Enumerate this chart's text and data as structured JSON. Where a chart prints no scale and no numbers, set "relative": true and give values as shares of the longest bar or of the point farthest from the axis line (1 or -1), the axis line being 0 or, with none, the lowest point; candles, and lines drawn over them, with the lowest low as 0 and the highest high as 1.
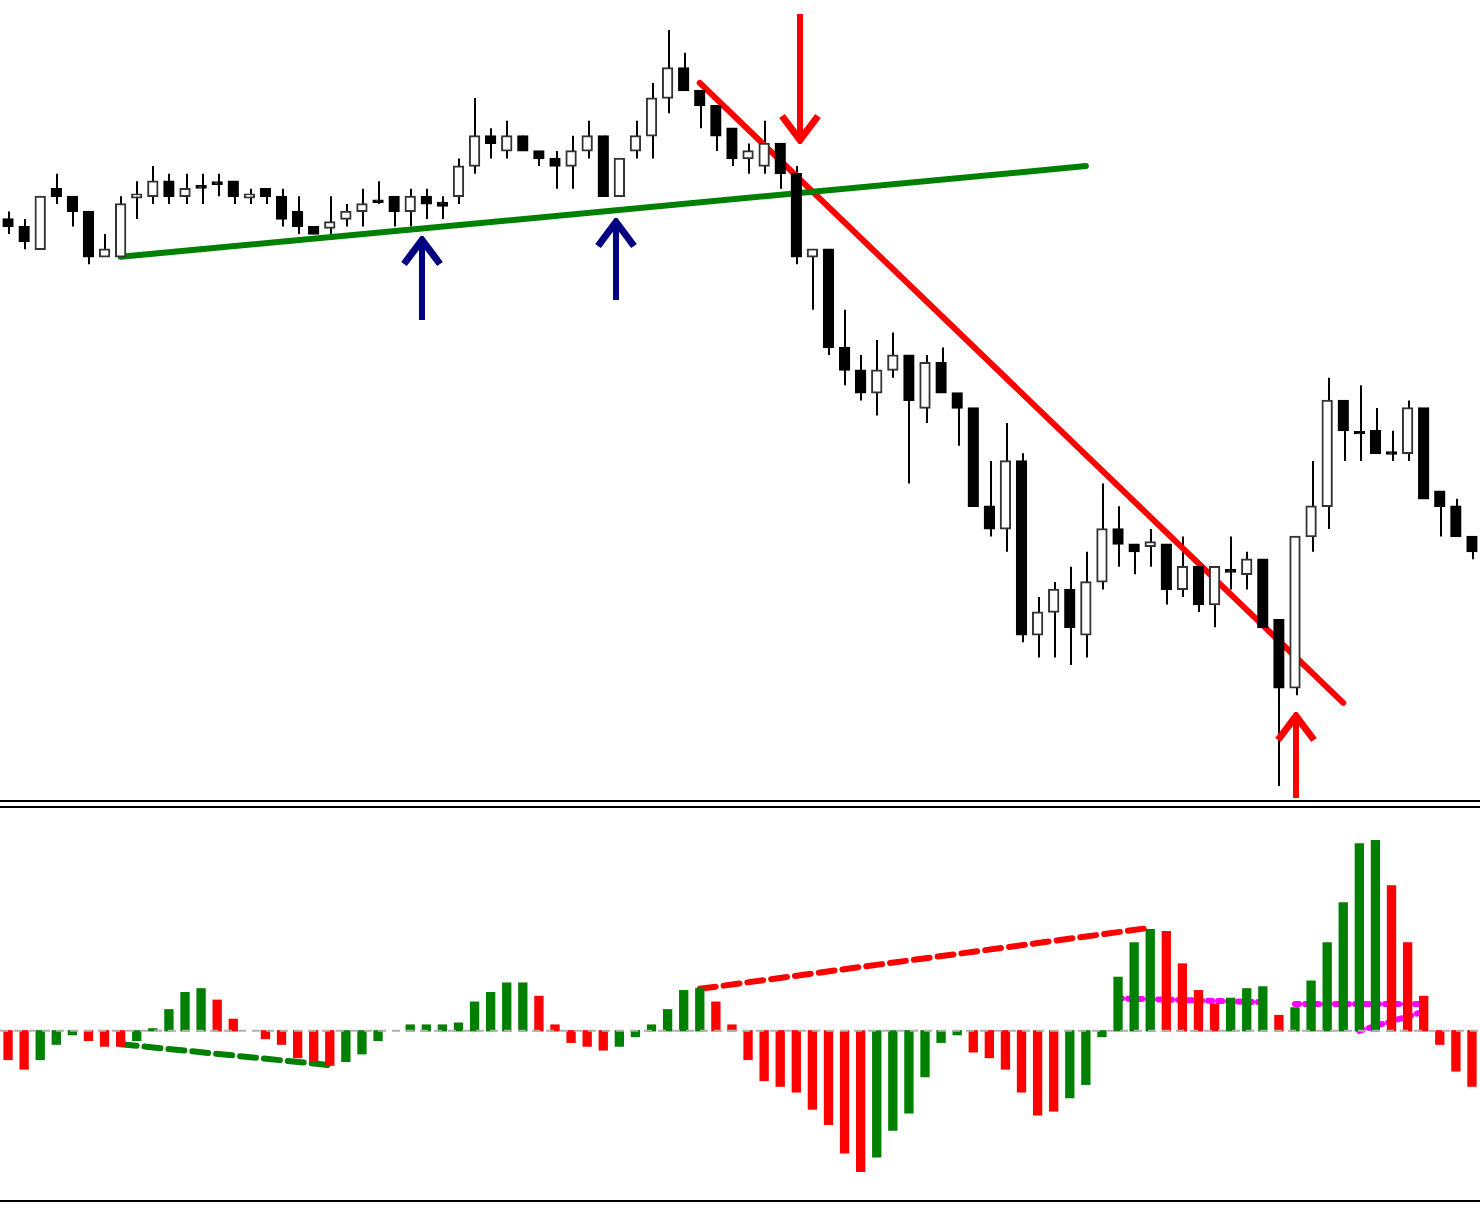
{
  "chart_data": [
    {
      "type": "candlestick",
      "relative": true,
      "categories": [
        null,
        null,
        null,
        null,
        null,
        null,
        null,
        null,
        null,
        null,
        null,
        null,
        null,
        null,
        null,
        null,
        null,
        null,
        null,
        null,
        null,
        null,
        null,
        null,
        null,
        null,
        null,
        null,
        null,
        null,
        null,
        null,
        null,
        null,
        null,
        null,
        null,
        null,
        null,
        null,
        null,
        null,
        null,
        null,
        null,
        null,
        null,
        null,
        null,
        null,
        null,
        null,
        null,
        null,
        null,
        null,
        null,
        null,
        null,
        null,
        null,
        null,
        null,
        null,
        null,
        null,
        null,
        null,
        null,
        null,
        null,
        null,
        null,
        null,
        null,
        null,
        null,
        null,
        null,
        null,
        null,
        null,
        null,
        null,
        null,
        null,
        null,
        null,
        null,
        null,
        null,
        null
      ],
      "ohlc": [
        [
          0.75,
          0.76,
          0.73,
          0.74
        ],
        [
          0.74,
          0.75,
          0.71,
          0.72
        ],
        [
          0.71,
          0.78,
          0.71,
          0.78
        ],
        [
          0.79,
          0.81,
          0.77,
          0.78
        ],
        [
          0.78,
          0.78,
          0.74,
          0.76
        ],
        [
          0.76,
          0.76,
          0.69,
          0.7
        ],
        [
          0.7,
          0.73,
          0.7,
          0.71
        ],
        [
          0.7,
          0.78,
          0.7,
          0.77
        ],
        [
          0.778,
          0.8,
          0.75,
          0.783
        ],
        [
          0.78,
          0.82,
          0.77,
          0.8
        ],
        [
          0.8,
          0.81,
          0.77,
          0.78
        ],
        [
          0.78,
          0.81,
          0.77,
          0.79
        ],
        [
          0.794,
          0.81,
          0.77,
          0.791
        ],
        [
          0.799,
          0.81,
          0.78,
          0.796
        ],
        [
          0.8,
          0.8,
          0.77,
          0.78
        ],
        [
          0.778,
          0.79,
          0.77,
          0.783
        ],
        [
          0.79,
          0.79,
          0.77,
          0.78
        ],
        [
          0.78,
          0.79,
          0.74,
          0.75
        ],
        [
          0.76,
          0.78,
          0.73,
          0.74
        ],
        [
          0.74,
          0.74,
          0.73,
          0.73
        ],
        [
          0.738,
          0.78,
          0.73,
          0.746
        ],
        [
          0.75,
          0.77,
          0.74,
          0.76
        ],
        [
          0.76,
          0.79,
          0.74,
          0.77
        ],
        [
          0.775,
          0.8,
          0.77,
          0.772
        ],
        [
          0.78,
          0.78,
          0.74,
          0.76
        ],
        [
          0.76,
          0.79,
          0.74,
          0.78
        ],
        [
          0.78,
          0.79,
          0.75,
          0.77
        ],
        [
          0.772,
          0.78,
          0.75,
          0.767
        ],
        [
          0.78,
          0.83,
          0.77,
          0.82
        ],
        [
          0.82,
          0.91,
          0.81,
          0.86
        ],
        [
          0.86,
          0.87,
          0.83,
          0.85
        ],
        [
          0.84,
          0.88,
          0.83,
          0.86
        ],
        [
          0.86,
          0.86,
          0.84,
          0.84
        ],
        [
          0.84,
          0.84,
          0.82,
          0.83
        ],
        [
          0.83,
          0.84,
          0.79,
          0.82
        ],
        [
          0.82,
          0.86,
          0.79,
          0.84
        ],
        [
          0.84,
          0.88,
          0.83,
          0.86
        ],
        [
          0.86,
          0.86,
          0.78,
          0.78
        ],
        [
          0.78,
          0.83,
          0.78,
          0.83
        ],
        [
          0.84,
          0.88,
          0.83,
          0.86
        ],
        [
          0.86,
          0.93,
          0.83,
          0.91
        ],
        [
          0.91,
          1,
          0.89,
          0.95
        ],
        [
          0.95,
          0.97,
          0.92,
          0.92
        ],
        [
          0.92,
          0.92,
          0.87,
          0.9
        ],
        [
          0.9,
          0.9,
          0.84,
          0.86
        ],
        [
          0.87,
          0.87,
          0.82,
          0.83
        ],
        [
          0.83,
          0.85,
          0.81,
          0.84
        ],
        [
          0.82,
          0.88,
          0.81,
          0.85
        ],
        [
          0.85,
          0.85,
          0.79,
          0.81
        ],
        [
          0.81,
          0.82,
          0.69,
          0.7
        ],
        [
          0.7,
          0.71,
          0.63,
          0.71
        ],
        [
          0.71,
          0.71,
          0.57,
          0.58
        ],
        [
          0.58,
          0.63,
          0.53,
          0.55
        ],
        [
          0.55,
          0.57,
          0.51,
          0.52
        ],
        [
          0.52,
          0.59,
          0.49,
          0.55
        ],
        [
          0.55,
          0.6,
          0.54,
          0.57
        ],
        [
          0.57,
          0.57,
          0.4,
          0.51
        ],
        [
          0.5,
          0.57,
          0.48,
          0.56
        ],
        [
          0.56,
          0.58,
          0.52,
          0.52
        ],
        [
          0.52,
          0.52,
          0.45,
          0.5
        ],
        [
          0.5,
          0.5,
          0.37,
          0.37
        ],
        [
          0.37,
          0.43,
          0.33,
          0.34
        ],
        [
          0.34,
          0.48,
          0.31,
          0.43
        ],
        [
          0.43,
          0.44,
          0.19,
          0.2
        ],
        [
          0.2,
          0.25,
          0.17,
          0.23
        ],
        [
          0.23,
          0.27,
          0.17,
          0.26
        ],
        [
          0.26,
          0.29,
          0.16,
          0.21
        ],
        [
          0.2,
          0.31,
          0.17,
          0.27
        ],
        [
          0.27,
          0.4,
          0.26,
          0.34
        ],
        [
          0.34,
          0.37,
          0.29,
          0.32
        ],
        [
          0.32,
          0.32,
          0.28,
          0.31
        ],
        [
          0.317,
          0.34,
          0.29,
          0.323
        ],
        [
          0.32,
          0.32,
          0.24,
          0.26
        ],
        [
          0.26,
          0.33,
          0.25,
          0.29
        ],
        [
          0.29,
          0.29,
          0.23,
          0.24
        ],
        [
          0.24,
          0.29,
          0.21,
          0.29
        ],
        [
          0.286,
          0.33,
          0.26,
          0.283
        ],
        [
          0.28,
          0.31,
          0.26,
          0.3
        ],
        [
          0.3,
          0.3,
          0.21,
          0.21
        ],
        [
          0.22,
          0.22,
          0,
          0.13
        ],
        [
          0.13,
          0.33,
          0.12,
          0.33
        ],
        [
          0.33,
          0.43,
          0.31,
          0.37
        ],
        [
          0.37,
          0.54,
          0.34,
          0.51
        ],
        [
          0.51,
          0.51,
          0.43,
          0.47
        ],
        [
          0.468,
          0.53,
          0.43,
          0.466
        ],
        [
          0.47,
          0.5,
          0.44,
          0.44
        ],
        [
          0.442,
          0.47,
          0.43,
          0.439
        ],
        [
          0.44,
          0.51,
          0.43,
          0.5
        ],
        [
          0.5,
          0.5,
          0.38,
          0.38
        ],
        [
          0.39,
          0.39,
          0.33,
          0.37
        ],
        [
          0.37,
          0.38,
          0.33,
          0.33
        ],
        [
          0.33,
          0.33,
          0.3,
          0.31
        ]
      ],
      "series": [
        {
          "type": "line",
          "color": "#008000",
          "values": [
            null,
            null,
            null,
            null,
            null,
            null,
            null,
            0.7,
            null,
            null,
            null,
            null,
            null,
            null,
            null,
            null,
            null,
            null,
            null,
            null,
            null,
            null,
            null,
            null,
            null,
            null,
            null,
            null,
            null,
            null,
            null,
            null,
            null,
            null,
            null,
            null,
            null,
            null,
            null,
            null,
            null,
            null,
            null,
            null,
            null,
            null,
            null,
            null,
            null,
            null,
            null,
            null,
            null,
            null,
            null,
            null,
            null,
            null,
            null,
            null,
            null,
            null,
            null,
            null,
            null,
            null,
            null,
            0.82,
            null,
            null,
            null,
            null,
            null,
            null,
            null,
            null,
            null,
            null,
            null,
            null,
            null,
            null,
            null,
            null,
            null,
            null,
            null,
            null,
            null,
            null,
            null,
            null
          ]
        },
        {
          "type": "line",
          "color": "#ff0000",
          "values": [
            null,
            null,
            null,
            null,
            null,
            null,
            null,
            null,
            null,
            null,
            null,
            null,
            null,
            null,
            null,
            null,
            null,
            null,
            null,
            null,
            null,
            null,
            null,
            null,
            null,
            null,
            null,
            null,
            null,
            null,
            null,
            null,
            null,
            null,
            null,
            null,
            null,
            null,
            null,
            null,
            null,
            null,
            null,
            0.93,
            null,
            null,
            null,
            null,
            null,
            null,
            null,
            null,
            null,
            null,
            null,
            null,
            null,
            null,
            null,
            null,
            null,
            null,
            null,
            null,
            null,
            null,
            null,
            null,
            null,
            null,
            null,
            null,
            null,
            null,
            null,
            null,
            null,
            null,
            null,
            null,
            null,
            null,
            null,
            0.11,
            null,
            null,
            null,
            null,
            null,
            null,
            null,
            null
          ]
        }
      ]
    },
    {
      "type": "bar",
      "relative": true,
      "ref_lines": [
        {
          "axis": "y",
          "value": 0,
          "color": "#b0b0b0",
          "line_style": "dashed"
        }
      ],
      "categories": [
        null,
        null,
        null,
        null,
        null,
        null,
        null,
        null,
        null,
        null,
        null,
        null,
        null,
        null,
        null,
        null,
        null,
        null,
        null,
        null,
        null,
        null,
        null,
        null,
        null,
        null,
        null,
        null,
        null,
        null,
        null,
        null,
        null,
        null,
        null,
        null,
        null,
        null,
        null,
        null,
        null,
        null,
        null,
        null,
        null,
        null,
        null,
        null,
        null,
        null,
        null,
        null,
        null,
        null,
        null,
        null,
        null,
        null,
        null,
        null,
        null,
        null,
        null,
        null,
        null,
        null,
        null,
        null,
        null,
        null,
        null,
        null,
        null,
        null,
        null,
        null,
        null,
        null,
        null,
        null,
        null,
        null,
        null,
        null,
        null,
        null,
        null,
        null,
        null,
        null,
        null,
        null
      ],
      "series": [
        {
          "values": [
            -0.15,
            -0.2,
            -0.15,
            -0.07,
            -0.02,
            -0.05,
            -0.08,
            -0.08,
            -0.05,
            0.01,
            0.11,
            0.2,
            0.22,
            0.16,
            0.06,
            null,
            -0.04,
            -0.07,
            -0.14,
            -0.16,
            -0.18,
            -0.16,
            -0.12,
            -0.05,
            null,
            0.03,
            0.03,
            0.03,
            0.04,
            0.15,
            0.2,
            0.25,
            0.25,
            0.18,
            0.03,
            -0.06,
            -0.08,
            -0.1,
            -0.08,
            -0.03,
            0.03,
            0.11,
            0.21,
            0.22,
            0.15,
            0.03,
            -0.15,
            -0.26,
            -0.29,
            -0.32,
            -0.41,
            -0.49,
            -0.64,
            -0.74,
            -0.66,
            -0.52,
            -0.43,
            -0.24,
            -0.06,
            -0.02,
            -0.11,
            -0.14,
            -0.2,
            -0.32,
            -0.44,
            -0.42,
            -0.35,
            -0.28,
            -0.03,
            0.28,
            0.46,
            0.53,
            0.52,
            0.35,
            0.21,
            0.14,
            0.17,
            0.22,
            0.23,
            0.08,
            0.12,
            0.26,
            0.46,
            0.67,
            0.98,
            1,
            0.76,
            0.46,
            0.18,
            -0.07,
            -0.21,
            -0.29
          ],
          "colors": [
            "#ff0000",
            "#ff0000",
            "#008000",
            "#008000",
            "#008000",
            "#ff0000",
            "#ff0000",
            "#ff0000",
            "#008000",
            "#008000",
            "#008000",
            "#008000",
            "#008000",
            "#ff0000",
            "#ff0000",
            "#ff0000",
            "#ff0000",
            "#ff0000",
            "#ff0000",
            "#ff0000",
            "#ff0000",
            "#008000",
            "#008000",
            "#008000",
            "#008000",
            "#008000",
            "#008000",
            "#008000",
            "#008000",
            "#008000",
            "#008000",
            "#008000",
            "#008000",
            "#ff0000",
            "#ff0000",
            "#ff0000",
            "#ff0000",
            "#ff0000",
            "#008000",
            "#008000",
            "#008000",
            "#008000",
            "#008000",
            "#008000",
            "#ff0000",
            "#ff0000",
            "#ff0000",
            "#ff0000",
            "#ff0000",
            "#ff0000",
            "#ff0000",
            "#ff0000",
            "#ff0000",
            "#ff0000",
            "#008000",
            "#008000",
            "#008000",
            "#008000",
            "#008000",
            "#008000",
            "#ff0000",
            "#ff0000",
            "#ff0000",
            "#ff0000",
            "#ff0000",
            "#ff0000",
            "#008000",
            "#008000",
            "#008000",
            "#008000",
            "#008000",
            "#008000",
            "#ff0000",
            "#ff0000",
            "#ff0000",
            "#ff0000",
            "#008000",
            "#008000",
            "#008000",
            "#ff0000",
            "#008000",
            "#008000",
            "#008000",
            "#008000",
            "#008000",
            "#008000",
            "#ff0000",
            "#ff0000",
            "#ff0000",
            "#ff0000",
            "#ff0000",
            "#ff0000"
          ]
        },
        {
          "type": "line",
          "color": "#008000",
          "line_style": "dashed",
          "values": [
            null,
            null,
            null,
            null,
            null,
            null,
            null,
            -0.07,
            null,
            null,
            null,
            null,
            null,
            null,
            null,
            null,
            null,
            null,
            null,
            null,
            -0.18,
            null,
            null,
            null,
            null,
            null,
            null,
            null,
            null,
            null,
            null,
            null,
            null,
            null,
            null,
            null,
            null,
            null,
            null,
            null,
            null,
            null,
            null,
            null,
            null,
            null,
            null,
            null,
            null,
            null,
            null,
            null,
            null,
            null,
            null,
            null,
            null,
            null,
            null,
            null,
            null,
            null,
            null,
            null,
            null,
            null,
            null,
            null,
            null,
            null,
            null,
            null,
            null,
            null,
            null,
            null,
            null,
            null,
            null,
            null,
            null,
            null,
            null,
            null,
            null,
            null,
            null,
            null,
            null,
            null,
            null,
            null
          ]
        },
        {
          "type": "line",
          "color": "#ff0000",
          "line_style": "dashed",
          "values": [
            null,
            null,
            null,
            null,
            null,
            null,
            null,
            null,
            null,
            null,
            null,
            null,
            null,
            null,
            null,
            null,
            null,
            null,
            null,
            null,
            null,
            null,
            null,
            null,
            null,
            null,
            null,
            null,
            null,
            null,
            null,
            null,
            null,
            null,
            null,
            null,
            null,
            null,
            null,
            null,
            null,
            null,
            null,
            0.22,
            null,
            null,
            null,
            null,
            null,
            null,
            null,
            null,
            null,
            null,
            null,
            null,
            null,
            null,
            null,
            null,
            null,
            null,
            null,
            null,
            null,
            null,
            null,
            null,
            null,
            null,
            null,
            0.54,
            null,
            null,
            null,
            null,
            null,
            null,
            null,
            null,
            null,
            null,
            null,
            null,
            null,
            null,
            null,
            null,
            null,
            null,
            null,
            null
          ]
        },
        {
          "type": "line",
          "color": "#ff00ff",
          "line_style": "dotted",
          "values": [
            null,
            null,
            null,
            null,
            null,
            null,
            null,
            null,
            null,
            null,
            null,
            null,
            null,
            null,
            null,
            null,
            null,
            null,
            null,
            null,
            null,
            null,
            null,
            null,
            null,
            null,
            null,
            null,
            null,
            null,
            null,
            null,
            null,
            null,
            null,
            null,
            null,
            null,
            null,
            null,
            null,
            null,
            null,
            null,
            null,
            null,
            null,
            null,
            null,
            null,
            null,
            null,
            null,
            null,
            null,
            null,
            null,
            null,
            null,
            null,
            null,
            null,
            null,
            null,
            null,
            null,
            null,
            null,
            null,
            0.17,
            null,
            null,
            null,
            null,
            null,
            null,
            null,
            null,
            0.15,
            null,
            null,
            null,
            null,
            null,
            null,
            null,
            null,
            null,
            null,
            null,
            null,
            null
          ]
        },
        {
          "type": "line",
          "color": "#ff00ff",
          "line_style": "dotted",
          "values": [
            null,
            null,
            null,
            null,
            null,
            null,
            null,
            null,
            null,
            null,
            null,
            null,
            null,
            null,
            null,
            null,
            null,
            null,
            null,
            null,
            null,
            null,
            null,
            null,
            null,
            null,
            null,
            null,
            null,
            null,
            null,
            null,
            null,
            null,
            null,
            null,
            null,
            null,
            null,
            null,
            null,
            null,
            null,
            null,
            null,
            null,
            null,
            null,
            null,
            null,
            null,
            null,
            null,
            null,
            null,
            null,
            null,
            null,
            null,
            null,
            null,
            null,
            null,
            null,
            null,
            null,
            null,
            null,
            null,
            null,
            null,
            null,
            null,
            null,
            null,
            null,
            null,
            null,
            null,
            null,
            0.14,
            null,
            null,
            null,
            null,
            null,
            null,
            null,
            0.14,
            null,
            null,
            null
          ]
        },
        {
          "type": "line",
          "color": "#ff00ff",
          "line_style": "dotted",
          "values": [
            null,
            null,
            null,
            null,
            null,
            null,
            null,
            null,
            null,
            null,
            null,
            null,
            null,
            null,
            null,
            null,
            null,
            null,
            null,
            null,
            null,
            null,
            null,
            null,
            null,
            null,
            null,
            null,
            null,
            null,
            null,
            null,
            null,
            null,
            null,
            null,
            null,
            null,
            null,
            null,
            null,
            null,
            null,
            null,
            null,
            null,
            null,
            null,
            null,
            null,
            null,
            null,
            null,
            null,
            null,
            null,
            null,
            null,
            null,
            null,
            null,
            null,
            null,
            null,
            null,
            null,
            null,
            null,
            null,
            null,
            null,
            null,
            null,
            null,
            null,
            null,
            null,
            null,
            null,
            null,
            null,
            null,
            null,
            null,
            0,
            null,
            null,
            null,
            0.1,
            null,
            null,
            null
          ]
        }
      ]
    }
  ]
}
